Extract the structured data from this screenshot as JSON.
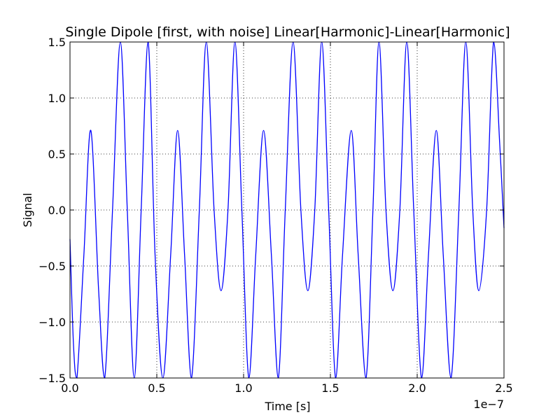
{
  "chart_data": {
    "type": "line",
    "title": "Single Dipole [first, with noise] Linear[Harmonic]-Linear[Harmonic]",
    "xlabel": "Time [s]",
    "ylabel": "Signal",
    "x_multiplier_label": "1e−7",
    "x_scale_exponent": -7,
    "xlim": [
      0.0,
      2.5e-07
    ],
    "ylim": [
      -1.5,
      1.5
    ],
    "x_ticks": [
      0.0,
      5e-08,
      1e-07,
      1.5e-07,
      2e-07,
      2.5e-07
    ],
    "x_tick_labels": [
      "0.0",
      "0.5",
      "1.0",
      "1.5",
      "2.0",
      "2.5"
    ],
    "y_ticks": [
      -1.5,
      -1.0,
      -0.5,
      0.0,
      0.5,
      1.0,
      1.5
    ],
    "y_tick_labels": [
      "−1.5",
      "−1.0",
      "−0.5",
      "0.0",
      "0.5",
      "1.0",
      "1.5"
    ],
    "grid": true,
    "line_color": "#0000ff",
    "series": [
      {
        "values": [
          [
            0.0,
            -0.26
          ],
          [
            2e-09,
            -1.2
          ],
          [
            4e-09,
            -1.5
          ],
          [
            8e-09,
            -0.4
          ],
          [
            1.2e-08,
            0.71
          ],
          [
            1.65e-08,
            -0.72
          ],
          [
            2e-08,
            -1.5
          ],
          [
            2.45e-08,
            0.0
          ],
          [
            2.9e-08,
            1.5
          ],
          [
            3.3e-08,
            0.0
          ],
          [
            3.7e-08,
            -1.5
          ],
          [
            4.1e-08,
            0.0
          ],
          [
            4.5e-08,
            1.5
          ],
          [
            4.9e-08,
            -0.4
          ],
          [
            5.35e-08,
            -1.5
          ],
          [
            5.8e-08,
            -0.4
          ],
          [
            6.2e-08,
            0.71
          ],
          [
            6.6e-08,
            -0.4
          ],
          [
            7e-08,
            -1.5
          ],
          [
            7.45e-08,
            0.0
          ],
          [
            7.85e-08,
            1.5
          ],
          [
            8.3e-08,
            0.0
          ],
          [
            8.7e-08,
            -0.72
          ],
          [
            9.1e-08,
            0.0
          ],
          [
            9.5e-08,
            1.5
          ],
          [
            9.9e-08,
            0.0
          ],
          [
            1.03e-07,
            -1.5
          ],
          [
            1.07e-07,
            -0.4
          ],
          [
            1.115e-07,
            0.71
          ],
          [
            1.16e-07,
            -0.4
          ],
          [
            1.2e-07,
            -1.5
          ],
          [
            1.24e-07,
            0.0
          ],
          [
            1.285e-07,
            1.5
          ],
          [
            1.33e-07,
            0.0
          ],
          [
            1.37e-07,
            -0.72
          ],
          [
            1.41e-07,
            0.0
          ],
          [
            1.45e-07,
            1.5
          ],
          [
            1.49e-07,
            0.0
          ],
          [
            1.53e-07,
            -1.5
          ],
          [
            1.57e-07,
            -0.4
          ],
          [
            1.62e-07,
            0.71
          ],
          [
            1.66e-07,
            -0.4
          ],
          [
            1.705e-07,
            -1.5
          ],
          [
            1.745e-07,
            0.0
          ],
          [
            1.78e-07,
            1.5
          ],
          [
            1.82e-07,
            0.0
          ],
          [
            1.86e-07,
            -0.72
          ],
          [
            1.9e-07,
            0.0
          ],
          [
            1.94e-07,
            1.5
          ],
          [
            1.98e-07,
            0.0
          ],
          [
            2.025e-07,
            -1.5
          ],
          [
            2.065e-07,
            -0.4
          ],
          [
            2.11e-07,
            0.71
          ],
          [
            2.15e-07,
            -0.4
          ],
          [
            2.195e-07,
            -1.5
          ],
          [
            2.24e-07,
            0.0
          ],
          [
            2.28e-07,
            1.5
          ],
          [
            2.32e-07,
            0.0
          ],
          [
            2.355e-07,
            -0.72
          ],
          [
            2.4e-07,
            0.0
          ],
          [
            2.44e-07,
            1.5
          ],
          [
            2.475e-07,
            0.6
          ],
          [
            2.5e-07,
            -0.16
          ]
        ]
      }
    ]
  }
}
